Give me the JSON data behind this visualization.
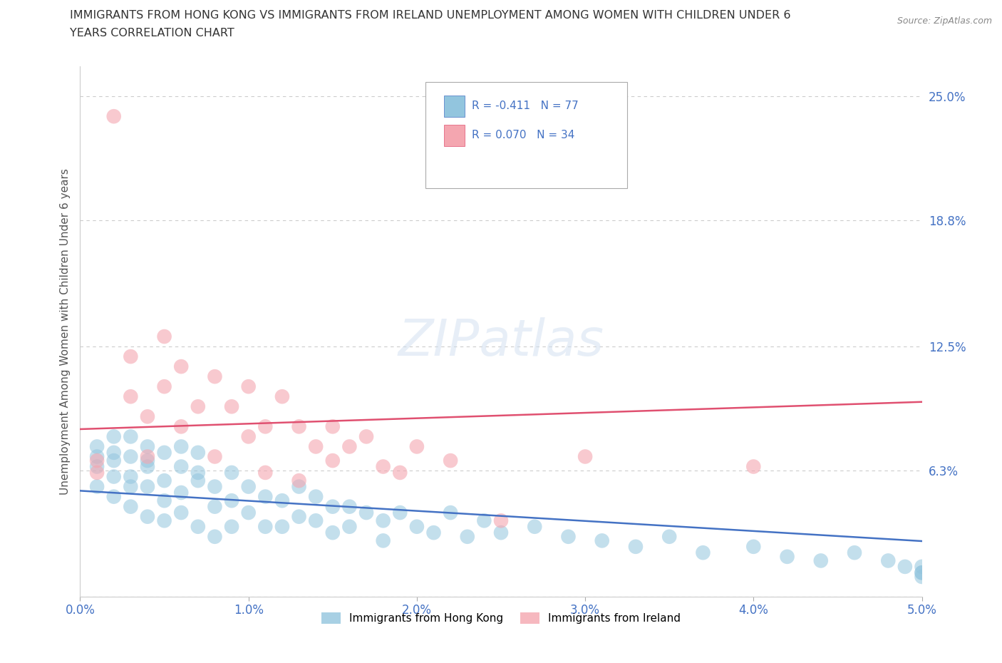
{
  "title_line1": "IMMIGRANTS FROM HONG KONG VS IMMIGRANTS FROM IRELAND UNEMPLOYMENT AMONG WOMEN WITH CHILDREN UNDER 6",
  "title_line2": "YEARS CORRELATION CHART",
  "source": "Source: ZipAtlas.com",
  "ylabel": "Unemployment Among Women with Children Under 6 years",
  "xlim": [
    0.0,
    0.05
  ],
  "ylim": [
    0.0,
    0.265
  ],
  "yticks": [
    0.0,
    0.063,
    0.125,
    0.188,
    0.25
  ],
  "ytick_labels": [
    "",
    "6.3%",
    "12.5%",
    "18.8%",
    "25.0%"
  ],
  "xticks": [
    0.0,
    0.01,
    0.02,
    0.03,
    0.04,
    0.05
  ],
  "xtick_labels": [
    "0.0%",
    "1.0%",
    "2.0%",
    "3.0%",
    "4.0%",
    "5.0%"
  ],
  "hk_color": "#92c5de",
  "ireland_color": "#f4a6b0",
  "hk_line_color": "#4472c4",
  "ireland_line_color": "#e05070",
  "R_hk": -0.411,
  "N_hk": 77,
  "R_ireland": 0.07,
  "N_ireland": 34,
  "legend_hk": "Immigrants from Hong Kong",
  "legend_ireland": "Immigrants from Ireland",
  "background_color": "#ffffff",
  "grid_color": "#cccccc",
  "hk_scatter_x": [
    0.001,
    0.001,
    0.001,
    0.001,
    0.002,
    0.002,
    0.002,
    0.002,
    0.002,
    0.003,
    0.003,
    0.003,
    0.003,
    0.003,
    0.004,
    0.004,
    0.004,
    0.004,
    0.004,
    0.005,
    0.005,
    0.005,
    0.005,
    0.006,
    0.006,
    0.006,
    0.006,
    0.007,
    0.007,
    0.007,
    0.007,
    0.008,
    0.008,
    0.008,
    0.009,
    0.009,
    0.009,
    0.01,
    0.01,
    0.011,
    0.011,
    0.012,
    0.012,
    0.013,
    0.013,
    0.014,
    0.014,
    0.015,
    0.015,
    0.016,
    0.016,
    0.017,
    0.018,
    0.018,
    0.019,
    0.02,
    0.021,
    0.022,
    0.023,
    0.024,
    0.025,
    0.027,
    0.029,
    0.031,
    0.033,
    0.035,
    0.037,
    0.04,
    0.042,
    0.044,
    0.046,
    0.048,
    0.049,
    0.05,
    0.05,
    0.05,
    0.05
  ],
  "hk_scatter_y": [
    0.07,
    0.075,
    0.065,
    0.055,
    0.08,
    0.06,
    0.068,
    0.072,
    0.05,
    0.06,
    0.07,
    0.08,
    0.055,
    0.045,
    0.065,
    0.075,
    0.055,
    0.04,
    0.068,
    0.058,
    0.072,
    0.048,
    0.038,
    0.065,
    0.075,
    0.052,
    0.042,
    0.062,
    0.072,
    0.058,
    0.035,
    0.055,
    0.045,
    0.03,
    0.062,
    0.048,
    0.035,
    0.055,
    0.042,
    0.05,
    0.035,
    0.048,
    0.035,
    0.055,
    0.04,
    0.05,
    0.038,
    0.045,
    0.032,
    0.045,
    0.035,
    0.042,
    0.038,
    0.028,
    0.042,
    0.035,
    0.032,
    0.042,
    0.03,
    0.038,
    0.032,
    0.035,
    0.03,
    0.028,
    0.025,
    0.03,
    0.022,
    0.025,
    0.02,
    0.018,
    0.022,
    0.018,
    0.015,
    0.012,
    0.01,
    0.015,
    0.012
  ],
  "ireland_scatter_x": [
    0.001,
    0.001,
    0.002,
    0.003,
    0.003,
    0.004,
    0.004,
    0.005,
    0.005,
    0.006,
    0.006,
    0.007,
    0.008,
    0.008,
    0.009,
    0.01,
    0.01,
    0.011,
    0.011,
    0.012,
    0.013,
    0.013,
    0.014,
    0.015,
    0.015,
    0.016,
    0.017,
    0.018,
    0.019,
    0.02,
    0.022,
    0.025,
    0.04,
    0.03
  ],
  "ireland_scatter_y": [
    0.062,
    0.068,
    0.24,
    0.12,
    0.1,
    0.09,
    0.07,
    0.13,
    0.105,
    0.115,
    0.085,
    0.095,
    0.11,
    0.07,
    0.095,
    0.08,
    0.105,
    0.085,
    0.062,
    0.1,
    0.085,
    0.058,
    0.075,
    0.085,
    0.068,
    0.075,
    0.08,
    0.065,
    0.062,
    0.075,
    0.068,
    0.038,
    0.065,
    0.07
  ]
}
